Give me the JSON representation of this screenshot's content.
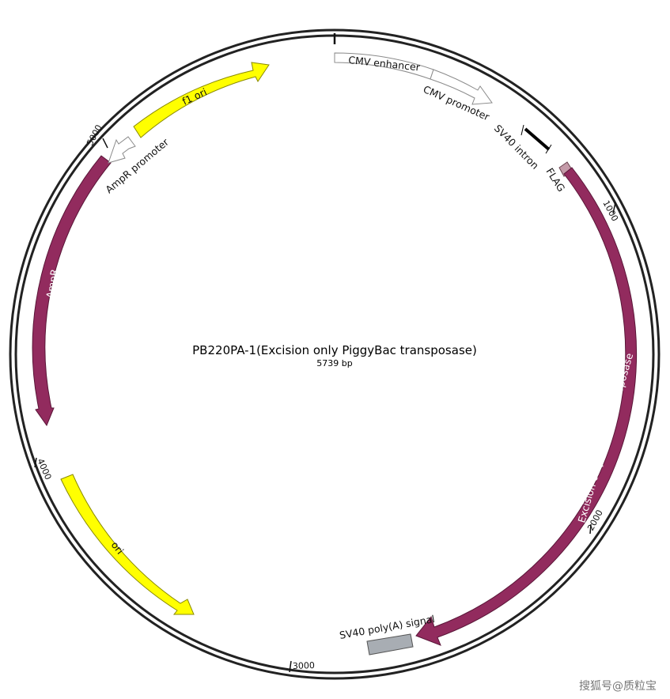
{
  "plasmid": {
    "name": "PB220PA-1(Excision only PiggyBac transposase)",
    "size_label": "5739 bp"
  },
  "ticks": [
    {
      "label": "1000"
    },
    {
      "label": "2000"
    },
    {
      "label": "3000"
    },
    {
      "label": "4000"
    },
    {
      "label": "5000"
    }
  ],
  "features": [
    {
      "key": "cmv-enhancer",
      "label": "CMV enhancer",
      "color": "#ffffff",
      "stroke": "#8a8a8a"
    },
    {
      "key": "cmv-promoter",
      "label": "CMV promoter",
      "color": "#ffffff",
      "stroke": "#8a8a8a"
    },
    {
      "key": "sv40-intron",
      "label": "SV40 intron",
      "color": "#000000"
    },
    {
      "key": "flag",
      "label": "FLAG",
      "color": "#c49aa8"
    },
    {
      "key": "transposase",
      "label": "Excision only PiggyBac transposase",
      "color": "#922b5e"
    },
    {
      "key": "sv40-polya",
      "label": "SV40 poly(A) signal",
      "color": "#a8adb3"
    },
    {
      "key": "ori",
      "label": "ori",
      "color": "#ffff00"
    },
    {
      "key": "ampr",
      "label": "AmpR",
      "color": "#922b5e"
    },
    {
      "key": "ampr-promoter",
      "label": "AmpR promoter",
      "color": "#ffffff",
      "stroke": "#8a8a8a"
    },
    {
      "key": "f1-ori",
      "label": "f1 ori",
      "color": "#ffff00"
    }
  ],
  "watermark": "搜狐号@质粒宝"
}
